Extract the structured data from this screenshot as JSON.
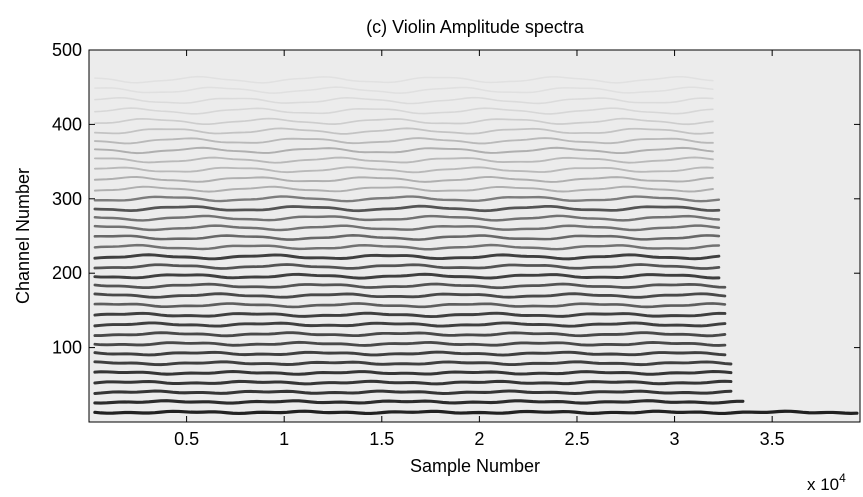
{
  "chart_data": {
    "type": "heatmap",
    "title": "(c) Violin Amplitude spectra",
    "xlabel": "Sample Number",
    "ylabel": "Channel Number",
    "x_multiplier_label": "x 10",
    "x_multiplier_exponent": "4",
    "xlim": [
      0,
      39500
    ],
    "ylim": [
      0,
      500
    ],
    "x_ticks": [
      5000,
      10000,
      15000,
      20000,
      25000,
      30000,
      35000
    ],
    "x_tick_labels": [
      "0.5",
      "1",
      "1.5",
      "2",
      "2.5",
      "3",
      "3.5"
    ],
    "y_ticks": [
      100,
      200,
      300,
      400,
      500
    ],
    "y_tick_labels": [
      "100",
      "200",
      "300",
      "400",
      "500"
    ],
    "colormap": "gray (white = low, black = high)",
    "background_color": "#ececec",
    "note_segments": [
      {
        "x_start": 300,
        "x_end": 32800
      },
      {
        "x_start": 32800,
        "x_end": 39500
      }
    ],
    "harmonic_bands": [
      {
        "channel": 13,
        "intensity": 1.0,
        "x_end": 39500
      },
      {
        "channel": 27,
        "intensity": 0.95,
        "x_end": 33500
      },
      {
        "channel": 40,
        "intensity": 0.9,
        "x_end": 33000
      },
      {
        "channel": 53,
        "intensity": 0.9,
        "x_end": 33000
      },
      {
        "channel": 66,
        "intensity": 0.9,
        "x_end": 33000
      },
      {
        "channel": 79,
        "intensity": 0.85,
        "x_end": 33000
      },
      {
        "channel": 92,
        "intensity": 0.85,
        "x_end": 32800
      },
      {
        "channel": 105,
        "intensity": 0.8,
        "x_end": 32800
      },
      {
        "channel": 118,
        "intensity": 0.8,
        "x_end": 32800
      },
      {
        "channel": 131,
        "intensity": 0.85,
        "x_end": 32800
      },
      {
        "channel": 144,
        "intensity": 0.85,
        "x_end": 32800
      },
      {
        "channel": 157,
        "intensity": 0.7,
        "x_end": 32800
      },
      {
        "channel": 170,
        "intensity": 0.8,
        "x_end": 32800
      },
      {
        "channel": 183,
        "intensity": 0.75,
        "x_end": 32800
      },
      {
        "channel": 196,
        "intensity": 0.85,
        "x_end": 32500
      },
      {
        "channel": 209,
        "intensity": 0.75,
        "x_end": 32500
      },
      {
        "channel": 222,
        "intensity": 0.85,
        "x_end": 32500
      },
      {
        "channel": 235,
        "intensity": 0.6,
        "x_end": 32500
      },
      {
        "channel": 248,
        "intensity": 0.65,
        "x_end": 32500
      },
      {
        "channel": 261,
        "intensity": 0.6,
        "x_end": 32500
      },
      {
        "channel": 274,
        "intensity": 0.6,
        "x_end": 32500
      },
      {
        "channel": 287,
        "intensity": 0.75,
        "x_end": 32500
      },
      {
        "channel": 300,
        "intensity": 0.55,
        "x_end": 32500
      },
      {
        "channel": 313,
        "intensity": 0.3,
        "x_end": 32000
      },
      {
        "channel": 326,
        "intensity": 0.3,
        "x_end": 32000
      },
      {
        "channel": 339,
        "intensity": 0.25,
        "x_end": 32000
      },
      {
        "channel": 352,
        "intensity": 0.25,
        "x_end": 32000
      },
      {
        "channel": 365,
        "intensity": 0.3,
        "x_end": 32000
      },
      {
        "channel": 378,
        "intensity": 0.25,
        "x_end": 32000
      },
      {
        "channel": 391,
        "intensity": 0.2,
        "x_end": 32000
      },
      {
        "channel": 404,
        "intensity": 0.15,
        "x_end": 32000
      },
      {
        "channel": 418,
        "intensity": 0.1,
        "x_end": 32000
      },
      {
        "channel": 432,
        "intensity": 0.08,
        "x_end": 32000
      },
      {
        "channel": 446,
        "intensity": 0.06,
        "x_end": 32000
      },
      {
        "channel": 460,
        "intensity": 0.05,
        "x_end": 32000
      }
    ]
  }
}
